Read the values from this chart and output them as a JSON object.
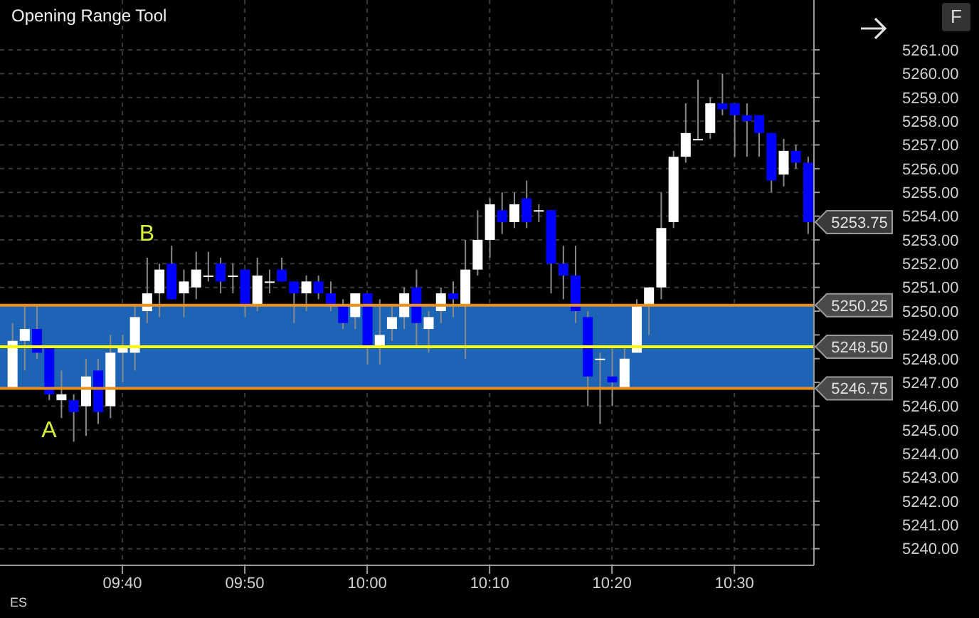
{
  "chart_data": {
    "type": "candlestick",
    "title": "Opening Range Tool",
    "x": [
      9.5167,
      9.5333,
      9.55,
      9.5667,
      9.5833,
      9.6,
      9.6167,
      9.6333,
      9.65,
      9.6667,
      9.6833,
      9.7,
      9.7167,
      9.7333,
      9.75,
      9.7667,
      9.7833,
      9.8,
      9.8167,
      9.8333,
      9.85,
      9.8667,
      9.8833,
      9.9,
      9.9167,
      9.9333,
      9.95,
      9.9667,
      9.9833,
      10,
      10.0167,
      10.0333,
      10.05,
      10.0667,
      10.0833,
      10.1,
      10.1167,
      10.1333,
      10.15,
      10.1667,
      10.1833,
      10.2,
      10.2167,
      10.2333,
      10.25,
      10.2667,
      10.2833,
      10.3,
      10.3167,
      10.3333,
      10.35,
      10.3667,
      10.3833,
      10.4,
      10.4167,
      10.4333,
      10.45,
      10.4667,
      10.4833,
      10.5,
      10.5167,
      10.5333,
      10.55,
      10.5667,
      10.5833,
      10.6
    ],
    "ohlc": [
      [
        5246.75,
        5249.5,
        5246.75,
        5248.75
      ],
      [
        5248.75,
        5250.25,
        5247.5,
        5249.25
      ],
      [
        5249.25,
        5250.25,
        5248,
        5248.25
      ],
      [
        5248.5,
        5248.5,
        5246.25,
        5246.5
      ],
      [
        5246.25,
        5247.5,
        5245.5,
        5246.5
      ],
      [
        5246.25,
        5246.5,
        5244.5,
        5245.75
      ],
      [
        5246,
        5248,
        5244.75,
        5247.25
      ],
      [
        5247.5,
        5248,
        5245.25,
        5245.75
      ],
      [
        5246,
        5249,
        5245.5,
        5248.25
      ],
      [
        5248.25,
        5249,
        5247,
        5248.5
      ],
      [
        5248.25,
        5250.25,
        5247.5,
        5249.75
      ],
      [
        5250,
        5252.25,
        5249.5,
        5250.75
      ],
      [
        5250.75,
        5252,
        5249.75,
        5251.75
      ],
      [
        5252,
        5252.75,
        5250.5,
        5250.5
      ],
      [
        5250.75,
        5251.75,
        5249.75,
        5251.25
      ],
      [
        5251,
        5252.5,
        5250.5,
        5251.75
      ],
      [
        5251.5,
        5252.5,
        5251.25,
        5251.5
      ],
      [
        5252,
        5252.25,
        5250.75,
        5251.25
      ],
      [
        5251.5,
        5252,
        5250.75,
        5251.5
      ],
      [
        5251.75,
        5251.75,
        5249.75,
        5250.25
      ],
      [
        5250.25,
        5252.25,
        5250,
        5251.5
      ],
      [
        5251.25,
        5251.75,
        5250.75,
        5251.25
      ],
      [
        5251.75,
        5252.25,
        5251.25,
        5251.25
      ],
      [
        5251.25,
        5251.25,
        5249.5,
        5250.75
      ],
      [
        5250.75,
        5251.5,
        5250,
        5251.25
      ],
      [
        5251.25,
        5251.5,
        5250.5,
        5250.75
      ],
      [
        5250.75,
        5251.25,
        5250,
        5250.25
      ],
      [
        5250.25,
        5250.5,
        5249.25,
        5249.5
      ],
      [
        5249.75,
        5250.75,
        5249.25,
        5250.75
      ],
      [
        5250.75,
        5250.75,
        5247.75,
        5248.5
      ],
      [
        5248.5,
        5250.5,
        5247.75,
        5249
      ],
      [
        5249.25,
        5250.25,
        5248.75,
        5249.75
      ],
      [
        5249.75,
        5251,
        5249.25,
        5250.75
      ],
      [
        5251,
        5251.75,
        5248.5,
        5249.5
      ],
      [
        5249.25,
        5250,
        5248.25,
        5249.75
      ],
      [
        5250,
        5251,
        5249.5,
        5250.75
      ],
      [
        5250.75,
        5251.25,
        5249.75,
        5250.5
      ],
      [
        5250.25,
        5253,
        5248,
        5251.75
      ],
      [
        5251.75,
        5254.25,
        5251.5,
        5253
      ],
      [
        5253,
        5254.75,
        5252.25,
        5254.5
      ],
      [
        5254.25,
        5255,
        5253.25,
        5253.75
      ],
      [
        5253.75,
        5255,
        5253.5,
        5254.5
      ],
      [
        5254.75,
        5255.5,
        5253.5,
        5253.75
      ],
      [
        5254.25,
        5254.5,
        5253.75,
        5254.25
      ],
      [
        5254.25,
        5254.25,
        5250.75,
        5252
      ],
      [
        5252,
        5252.75,
        5250.5,
        5251.5
      ],
      [
        5251.5,
        5252.75,
        5249.5,
        5250
      ],
      [
        5249.75,
        5250,
        5246,
        5247.25
      ],
      [
        5248,
        5248.25,
        5245.25,
        5248
      ],
      [
        5247.25,
        5248.5,
        5246,
        5247
      ],
      [
        5246.75,
        5248.5,
        5246.75,
        5248
      ],
      [
        5248.25,
        5250.5,
        5248.25,
        5250.25
      ],
      [
        5250.25,
        5251,
        5249,
        5251
      ],
      [
        5251,
        5255,
        5250.5,
        5253.5
      ],
      [
        5253.75,
        5256.75,
        5253.5,
        5256.5
      ],
      [
        5256.5,
        5258.75,
        5256.25,
        5257.5
      ],
      [
        5257.25,
        5259.75,
        5257.25,
        5257.25
      ],
      [
        5257.5,
        5259,
        5257.25,
        5258.75
      ],
      [
        5258.75,
        5260,
        5258.25,
        5258.5
      ],
      [
        5258.75,
        5258.75,
        5256.5,
        5258.25
      ],
      [
        5258.25,
        5258.75,
        5256.5,
        5258
      ],
      [
        5258.25,
        5258.25,
        5256.5,
        5257.5
      ],
      [
        5257.5,
        5257.5,
        5255,
        5255.5
      ],
      [
        5255.75,
        5257.25,
        5255.25,
        5256.75
      ],
      [
        5256.75,
        5257,
        5256,
        5256.25
      ],
      [
        5256.25,
        5256.5,
        5253.25,
        5253.75
      ]
    ],
    "colors": [
      "#ffffff",
      "#ffffff",
      "#0000ff",
      "#0000ff",
      "#ffffff",
      "#0000ff",
      "#ffffff",
      "#0000ff",
      "#ffffff",
      "#ffffff",
      "#ffffff",
      "#ffffff",
      "#ffffff",
      "#0000ff",
      "#ffffff",
      "#ffffff",
      "#ffffff",
      "#0000ff",
      "#ffffff",
      "#0000ff",
      "#ffffff",
      "#ffffff",
      "#0000ff",
      "#0000ff",
      "#ffffff",
      "#0000ff",
      "#0000ff",
      "#0000ff",
      "#ffffff",
      "#0000ff",
      "#ffffff",
      "#ffffff",
      "#ffffff",
      "#0000ff",
      "#ffffff",
      "#ffffff",
      "#0000ff",
      "#ffffff",
      "#ffffff",
      "#ffffff",
      "#0000ff",
      "#ffffff",
      "#0000ff",
      "#ffffff",
      "#0000ff",
      "#0000ff",
      "#0000ff",
      "#0000ff",
      "#ffffff",
      "#0000ff",
      "#ffffff",
      "#ffffff",
      "#ffffff",
      "#ffffff",
      "#ffffff",
      "#ffffff",
      "#ffffff",
      "#ffffff",
      "#0000ff",
      "#0000ff",
      "#0000ff",
      "#0000ff",
      "#0000ff",
      "#ffffff",
      "#0000ff",
      "#0000ff"
    ],
    "xlim": [
      9.5,
      10.6083
    ],
    "xticks": [
      {
        "value": 9.6667,
        "label": "09:40"
      },
      {
        "value": 9.8333,
        "label": "09:50"
      },
      {
        "value": 10,
        "label": "10:00"
      },
      {
        "value": 10.1667,
        "label": "10:10"
      },
      {
        "value": 10.3333,
        "label": "10:20"
      },
      {
        "value": 10.5,
        "label": "10:30"
      }
    ],
    "ylim": [
      5239.3,
      5263.1
    ],
    "yticks": [
      {
        "value": 5240,
        "label": "5240.00"
      },
      {
        "value": 5241,
        "label": "5241.00"
      },
      {
        "value": 5242,
        "label": "5242.00"
      },
      {
        "value": 5243,
        "label": "5243.00"
      },
      {
        "value": 5244,
        "label": "5244.00"
      },
      {
        "value": 5245,
        "label": "5245.00"
      },
      {
        "value": 5246,
        "label": "5246.00"
      },
      {
        "value": 5247,
        "label": "5247.00"
      },
      {
        "value": 5248,
        "label": "5248.00"
      },
      {
        "value": 5249,
        "label": "5249.00"
      },
      {
        "value": 5250,
        "label": "5250.00"
      },
      {
        "value": 5251,
        "label": "5251.00"
      },
      {
        "value": 5252,
        "label": "5252.00"
      },
      {
        "value": 5253,
        "label": "5253.00"
      },
      {
        "value": 5254,
        "label": "5254.00"
      },
      {
        "value": 5255,
        "label": "5255.00"
      },
      {
        "value": 5256,
        "label": "5256.00"
      },
      {
        "value": 5257,
        "label": "5257.00"
      },
      {
        "value": 5258,
        "label": "5258.00"
      },
      {
        "value": 5259,
        "label": "5259.00"
      },
      {
        "value": 5260,
        "label": "5260.00"
      },
      {
        "value": 5261,
        "label": "5261.00"
      }
    ],
    "grid": true,
    "bands": [
      {
        "axis": "y",
        "from": 5246.75,
        "to": 5250.25,
        "color": "#1e64b4"
      }
    ],
    "ref_lines": [
      {
        "axis": "y",
        "value": 5250.25,
        "label": "5250.25",
        "color": "#e8901e"
      },
      {
        "axis": "y",
        "value": 5248.5,
        "label": "5248.50",
        "color": "#ffff00"
      },
      {
        "axis": "y",
        "value": 5246.75,
        "label": "5246.75",
        "color": "#e8901e"
      }
    ],
    "annotations": [
      {
        "text": "A",
        "x": 9.5667,
        "y": 5246.25
      },
      {
        "text": "B",
        "x": 9.7,
        "y": 5252.25
      },
      {
        "text": "5253.75",
        "x": 10.6083,
        "y": 5253.75
      },
      "ES",
      "F"
    ]
  }
}
